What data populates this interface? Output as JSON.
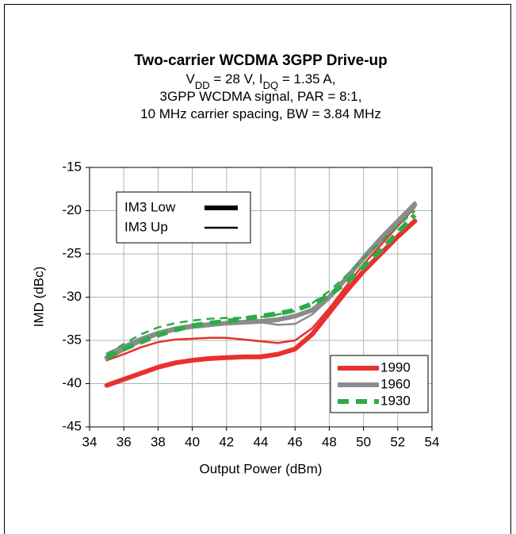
{
  "chart_data": {
    "type": "line",
    "title": "Two-carrier WCDMA 3GPP Drive-up",
    "subtitle_lines": [
      [
        {
          "text": "V"
        },
        {
          "text": "DD",
          "sub": true
        },
        {
          "text": " = 28 V, I"
        },
        {
          "text": "DQ",
          "sub": true
        },
        {
          "text": " = 1.35 A,"
        }
      ],
      [
        {
          "text": "3GPP WCDMA signal, PAR = 8:1,"
        }
      ],
      [
        {
          "text": "10 MHz carrier spacing, BW = 3.84 MHz"
        }
      ]
    ],
    "x_label": "Output Power (dBm)",
    "y_label": "IMD (dBc)",
    "xlim": [
      34,
      54
    ],
    "xticks": [
      34,
      36,
      38,
      40,
      42,
      44,
      46,
      48,
      50,
      52,
      54
    ],
    "ylim": [
      -45,
      -15
    ],
    "yticks": [
      -45,
      -40,
      -35,
      -30,
      -25,
      -20,
      -15
    ],
    "grid": true,
    "x": [
      35,
      36,
      37,
      38,
      39,
      40,
      41,
      42,
      43,
      44,
      45,
      46,
      47,
      48,
      49,
      50,
      51,
      52,
      53
    ],
    "series": [
      {
        "name": "1990",
        "style": "IM3 Low",
        "color": "#e8312f",
        "width": 6,
        "dash": false,
        "values": [
          -40.2,
          -39.5,
          -38.8,
          -38.1,
          -37.6,
          -37.3,
          -37.1,
          -37.0,
          -36.9,
          -36.9,
          -36.6,
          -36.0,
          -34.3,
          -31.8,
          -29.3,
          -27.0,
          -25.0,
          -23.0,
          -21.2
        ]
      },
      {
        "name": "1990",
        "style": "IM3 Up",
        "color": "#e8312f",
        "width": 2.5,
        "dash": false,
        "values": [
          -37.3,
          -36.6,
          -35.8,
          -35.2,
          -34.9,
          -34.8,
          -34.7,
          -34.7,
          -34.9,
          -35.1,
          -35.3,
          -35.0,
          -33.6,
          -31.3,
          -28.7,
          -26.2,
          -24.0,
          -21.8,
          -19.6
        ]
      },
      {
        "name": "1960",
        "style": "IM3 Low",
        "color": "#8c8c8c",
        "width": 6,
        "dash": false,
        "values": [
          -37.0,
          -36.0,
          -35.0,
          -34.2,
          -33.7,
          -33.4,
          -33.2,
          -33.0,
          -32.9,
          -32.8,
          -32.6,
          -32.2,
          -31.5,
          -30.0,
          -27.8,
          -25.5,
          -23.4,
          -21.3,
          -19.3
        ]
      },
      {
        "name": "1960",
        "style": "IM3 Up",
        "color": "#8c8c8c",
        "width": 2.5,
        "dash": false,
        "values": [
          -36.5,
          -35.6,
          -34.7,
          -34.0,
          -33.5,
          -33.2,
          -33.0,
          -32.9,
          -32.8,
          -32.9,
          -33.2,
          -33.1,
          -32.0,
          -30.2,
          -27.8,
          -25.2,
          -23.0,
          -21.0,
          -19.0
        ]
      },
      {
        "name": "1930",
        "style": "IM3 Low",
        "color": "#2eab48",
        "width": 6,
        "dash": true,
        "values": [
          -37.0,
          -36.0,
          -35.2,
          -34.4,
          -33.8,
          -33.3,
          -33.0,
          -32.8,
          -32.5,
          -32.2,
          -31.9,
          -31.5,
          -30.8,
          -29.8,
          -28.3,
          -26.5,
          -24.6,
          -22.5,
          -20.5
        ]
      },
      {
        "name": "1930",
        "style": "IM3 Up",
        "color": "#2eab48",
        "width": 2.5,
        "dash": true,
        "values": [
          -36.7,
          -35.4,
          -34.3,
          -33.5,
          -33.0,
          -32.7,
          -32.5,
          -32.4,
          -32.4,
          -32.3,
          -32.0,
          -31.6,
          -30.7,
          -29.3,
          -27.5,
          -25.5,
          -23.6,
          -21.8,
          -20.0
        ]
      }
    ]
  }
}
